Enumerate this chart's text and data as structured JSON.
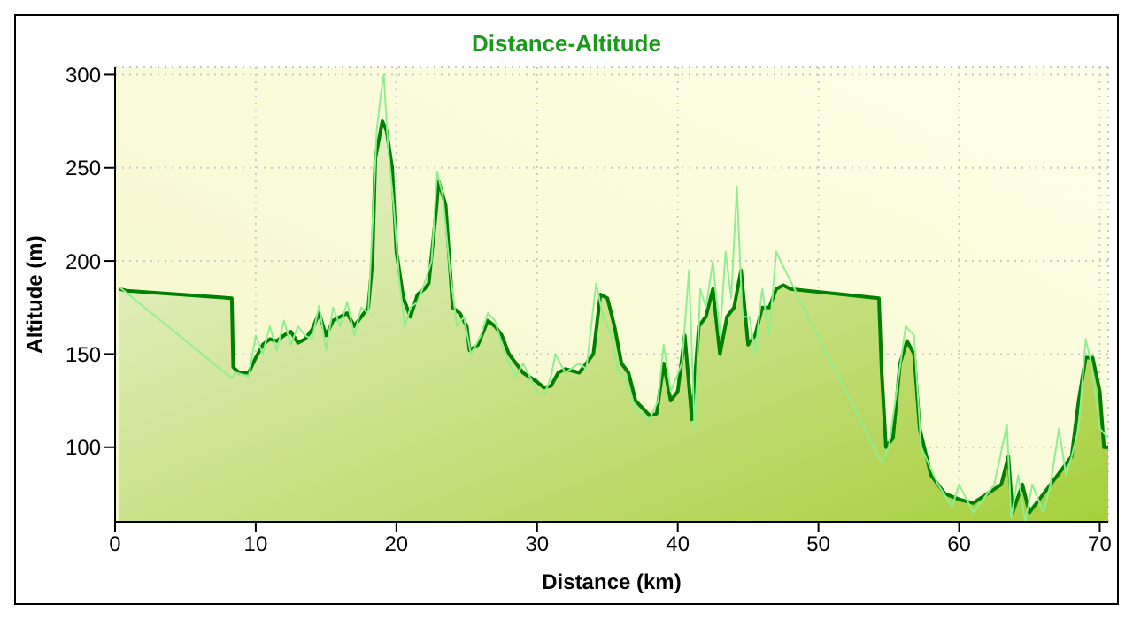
{
  "chart_data": {
    "type": "area",
    "title": "Distance-Altitude",
    "xlabel": "Distance (km)",
    "ylabel": "Altitude (m)",
    "xlim": [
      0,
      70.6
    ],
    "xticks": [
      0,
      10,
      20,
      30,
      40,
      50,
      60,
      70
    ],
    "ylim": [
      60,
      304
    ],
    "yticks": [
      100,
      150,
      200,
      250,
      300
    ],
    "grid": true,
    "series": [
      {
        "color": "#008000",
        "x": [
          0.3,
          0.8,
          8.3,
          8.4,
          8.8,
          9.5,
          10,
          10.5,
          11,
          11.5,
          12,
          12.5,
          13,
          13.5,
          14,
          14.5,
          15,
          15.5,
          16,
          16.5,
          17,
          17.5,
          18,
          18.3,
          18.5,
          19,
          19.3,
          19.7,
          20,
          20.5,
          21,
          21.5,
          22,
          22.3,
          22.8,
          23,
          23.5,
          24,
          24.5,
          25,
          25.2,
          25.8,
          26.5,
          27,
          27.5,
          28,
          28.5,
          29,
          30,
          30.5,
          31,
          31.5,
          32,
          33,
          34,
          34.5,
          35,
          35.5,
          36,
          36.5,
          37,
          38,
          38.5,
          39,
          39.5,
          40,
          40.5,
          41,
          41.5,
          42,
          42.5,
          43,
          43.5,
          44,
          44.5,
          45,
          45.5,
          46,
          46.5,
          47,
          47.5,
          48,
          54.3,
          54.5,
          54.8,
          55.3,
          55.8,
          56.3,
          56.8,
          57.2,
          58,
          59,
          60,
          61,
          62,
          63,
          63.5,
          63.8,
          64.5,
          65,
          66,
          67,
          67.5,
          68,
          68.5,
          69,
          69.5,
          70,
          70.3,
          70.6
        ],
        "values": [
          185,
          184,
          180,
          143,
          140,
          140,
          148,
          155,
          158,
          157,
          160,
          162,
          156,
          158,
          163,
          172,
          160,
          168,
          170,
          172,
          165,
          170,
          175,
          200,
          255,
          275,
          270,
          250,
          205,
          180,
          170,
          182,
          185,
          188,
          225,
          243,
          230,
          175,
          172,
          165,
          152,
          155,
          168,
          165,
          160,
          150,
          145,
          140,
          135,
          132,
          133,
          140,
          142,
          140,
          150,
          182,
          180,
          165,
          145,
          140,
          125,
          117,
          118,
          145,
          125,
          130,
          160,
          115,
          165,
          170,
          185,
          150,
          170,
          175,
          195,
          155,
          160,
          175,
          175,
          185,
          187,
          185,
          180,
          140,
          100,
          105,
          145,
          157,
          150,
          110,
          85,
          75,
          72,
          70,
          75,
          80,
          95,
          65,
          80,
          65,
          75,
          85,
          90,
          95,
          125,
          148,
          148,
          130,
          100,
          100
        ]
      },
      {
        "type": "line",
        "color": "#90ee90",
        "x": [
          0.3,
          8.3,
          8.6,
          9.5,
          10,
          10.5,
          11,
          11.5,
          12,
          12.5,
          13,
          13.5,
          14,
          14.5,
          15,
          15.5,
          16,
          16.5,
          17,
          17.5,
          18,
          18.3,
          18.6,
          18.9,
          19.1,
          19.4,
          19.8,
          20.2,
          20.6,
          21,
          21.5,
          22,
          22.5,
          22.9,
          23.3,
          23.8,
          24.3,
          24.8,
          25.3,
          26,
          26.5,
          27,
          27.5,
          28,
          28.5,
          29,
          30,
          30.5,
          31,
          31.3,
          32,
          33,
          33.5,
          34.2,
          34.7,
          35.3,
          35.8,
          36.3,
          37,
          38,
          38.6,
          39,
          39.5,
          40.3,
          40.8,
          41.2,
          41.6,
          42,
          42.5,
          43,
          43.4,
          43.8,
          44.2,
          44.6,
          45.1,
          45.5,
          46,
          46.5,
          47,
          47.3,
          54.5,
          55,
          56.2,
          56.8,
          57.3,
          58.5,
          59.5,
          60,
          61,
          62.5,
          63.4,
          63.7,
          64.2,
          64.7,
          65.2,
          66,
          66.5,
          67.1,
          67.6,
          68,
          68.5,
          69,
          69.4,
          70,
          70.6
        ],
        "values": [
          186,
          137,
          140,
          138,
          160,
          150,
          165,
          152,
          168,
          155,
          165,
          160,
          158,
          176,
          152,
          175,
          165,
          178,
          160,
          175,
          172,
          220,
          270,
          290,
          300,
          262,
          230,
          190,
          165,
          175,
          178,
          188,
          200,
          248,
          235,
          195,
          165,
          170,
          150,
          160,
          172,
          168,
          155,
          145,
          138,
          145,
          130,
          128,
          138,
          150,
          140,
          145,
          142,
          188,
          170,
          160,
          140,
          138,
          120,
          115,
          125,
          155,
          130,
          145,
          195,
          110,
          185,
          175,
          200,
          160,
          205,
          180,
          240,
          170,
          170,
          150,
          185,
          160,
          205,
          200,
          92,
          100,
          165,
          160,
          100,
          80,
          68,
          80,
          65,
          80,
          112,
          62,
          85,
          60,
          80,
          65,
          80,
          110,
          85,
          95,
          110,
          158,
          145,
          110,
          105
        ]
      }
    ]
  }
}
